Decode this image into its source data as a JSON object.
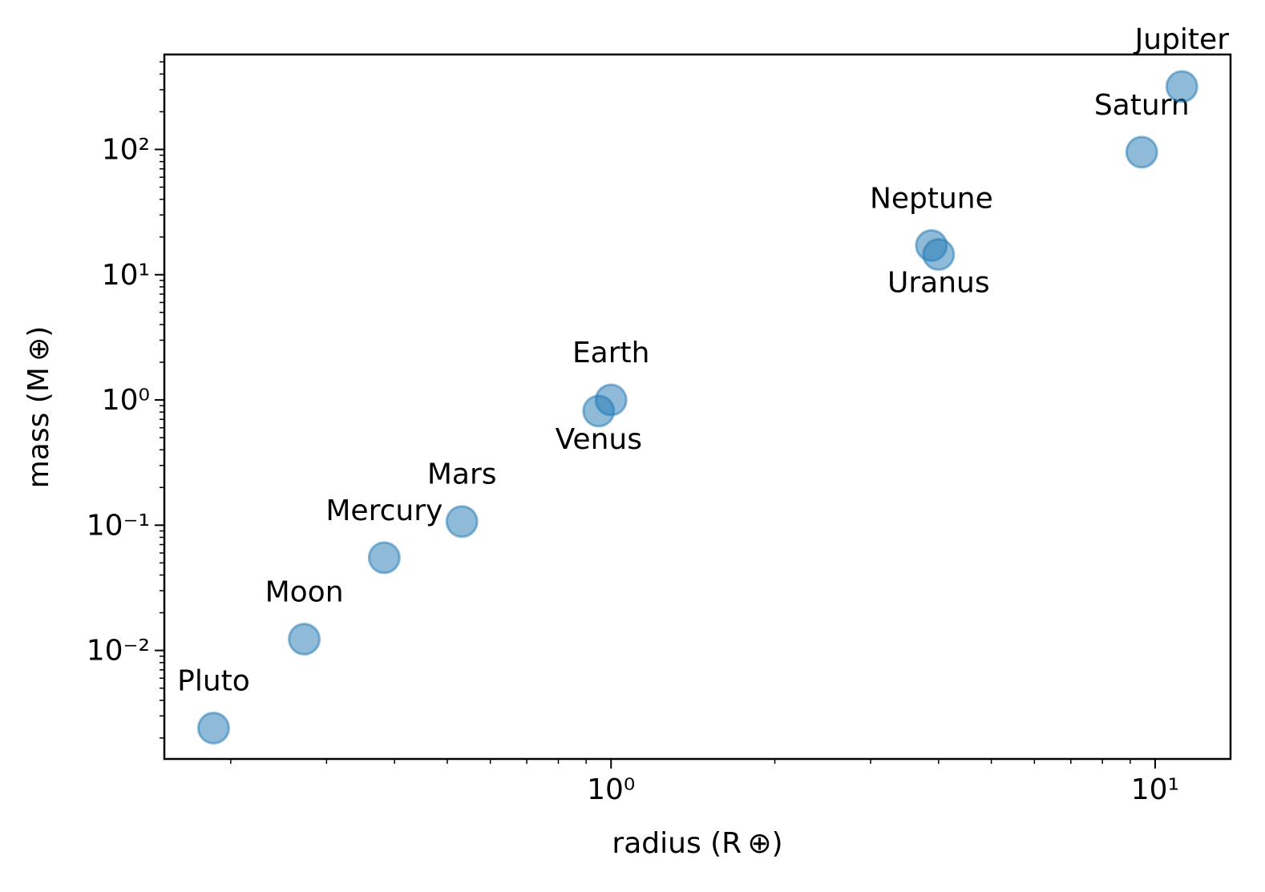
{
  "chart_data": {
    "type": "scatter",
    "xlabel": "radius (R ⊕)",
    "ylabel": "mass (M ⊕)",
    "xscale": "log",
    "yscale": "log",
    "xlim": [
      0.151,
      13.76
    ],
    "ylim": [
      0.00136,
      573
    ],
    "xticks": [
      {
        "value": 1,
        "label": "10⁰"
      },
      {
        "value": 10,
        "label": "10¹"
      }
    ],
    "yticks": [
      {
        "value": 0.01,
        "label": "10⁻²"
      },
      {
        "value": 0.1,
        "label": "10⁻¹"
      },
      {
        "value": 1,
        "label": "10⁰"
      },
      {
        "value": 10,
        "label": "10¹"
      },
      {
        "value": 100,
        "label": "10²"
      }
    ],
    "xminorticks": [
      0.2,
      0.3,
      0.4,
      0.5,
      0.6,
      0.7,
      0.8,
      0.9,
      2,
      3,
      4,
      5,
      6,
      7,
      8,
      9
    ],
    "yminorticks": [
      0.002,
      0.003,
      0.004,
      0.005,
      0.006,
      0.007,
      0.008,
      0.009,
      0.02,
      0.03,
      0.04,
      0.05,
      0.06,
      0.07,
      0.08,
      0.09,
      0.2,
      0.3,
      0.4,
      0.5,
      0.6,
      0.7,
      0.8,
      0.9,
      2,
      3,
      4,
      5,
      6,
      7,
      8,
      9,
      20,
      30,
      40,
      50,
      60,
      70,
      80,
      90,
      200,
      300,
      400,
      500
    ],
    "series": [
      {
        "color": "#1f77b4",
        "labels": [
          "Pluto",
          "Moon",
          "Mercury",
          "Mars",
          "Venus",
          "Earth",
          "Neptune",
          "Uranus",
          "Saturn",
          "Jupiter"
        ],
        "x": [
          0.186,
          0.273,
          0.383,
          0.532,
          0.949,
          1.0,
          3.88,
          4.0,
          9.45,
          11.2
        ],
        "values": [
          0.0024,
          0.0123,
          0.055,
          0.107,
          0.815,
          1.0,
          17.1,
          14.5,
          95.2,
          317.8
        ]
      }
    ]
  }
}
